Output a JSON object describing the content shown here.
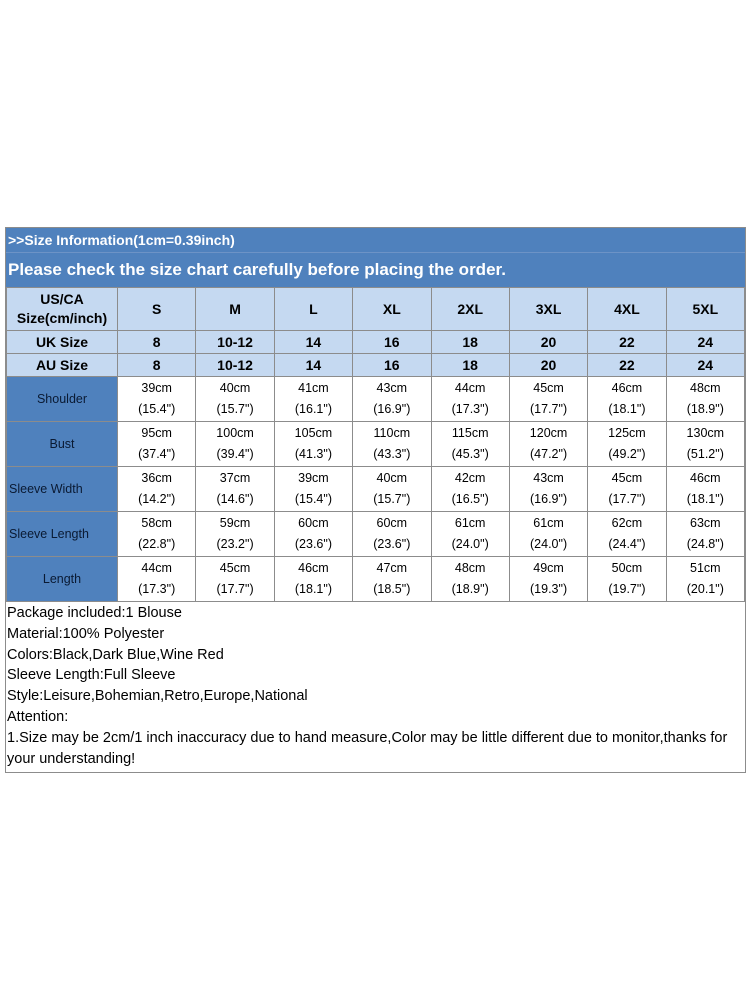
{
  "header": {
    "info": ">>Size Information(1cm=0.39inch)",
    "notice": "Please check the size chart carefully before placing the order."
  },
  "table": {
    "corner_line1": "US/CA",
    "corner_line2": "Size(cm/inch)",
    "sizes": [
      "S",
      "M",
      "L",
      "XL",
      "2XL",
      "3XL",
      "4XL",
      "5XL"
    ],
    "uk_label": "UK Size",
    "uk": [
      "8",
      "10-12",
      "14",
      "16",
      "18",
      "20",
      "22",
      "24"
    ],
    "au_label": "AU Size",
    "au": [
      "8",
      "10-12",
      "14",
      "16",
      "18",
      "20",
      "22",
      "24"
    ],
    "rows": [
      {
        "label": "Shoulder",
        "cm": [
          "39cm",
          "40cm",
          "41cm",
          "43cm",
          "44cm",
          "45cm",
          "46cm",
          "48cm"
        ],
        "inch": [
          "(15.4\")",
          "(15.7\")",
          "(16.1\")",
          "(16.9\")",
          "(17.3\")",
          "(17.7\")",
          "(18.1\")",
          "(18.9\")"
        ]
      },
      {
        "label": "Bust",
        "cm": [
          "95cm",
          "100cm",
          "105cm",
          "110cm",
          "115cm",
          "120cm",
          "125cm",
          "130cm"
        ],
        "inch": [
          "(37.4\")",
          "(39.4\")",
          "(41.3\")",
          "(43.3\")",
          "(45.3\")",
          "(47.2\")",
          "(49.2\")",
          "(51.2\")"
        ]
      },
      {
        "label": "Sleeve Width",
        "cm": [
          "36cm",
          "37cm",
          "39cm",
          "40cm",
          "42cm",
          "43cm",
          "45cm",
          "46cm"
        ],
        "inch": [
          "(14.2\")",
          "(14.6\")",
          "(15.4\")",
          "(15.7\")",
          "(16.5\")",
          "(16.9\")",
          "(17.7\")",
          "(18.1\")"
        ]
      },
      {
        "label": "Sleeve Length",
        "cm": [
          "58cm",
          "59cm",
          "60cm",
          "60cm",
          "61cm",
          "61cm",
          "62cm",
          "63cm"
        ],
        "inch": [
          "(22.8\")",
          "(23.2\")",
          "(23.6\")",
          "(23.6\")",
          "(24.0\")",
          "(24.0\")",
          "(24.4\")",
          "(24.8\")"
        ]
      },
      {
        "label": "Length",
        "cm": [
          "44cm",
          "45cm",
          "46cm",
          "47cm",
          "48cm",
          "49cm",
          "50cm",
          "51cm"
        ],
        "inch": [
          "(17.3\")",
          "(17.7\")",
          "(18.1\")",
          "(18.5\")",
          "(18.9\")",
          "(19.3\")",
          "(19.7\")",
          "(20.1\")"
        ]
      }
    ]
  },
  "notes": {
    "package": "Package included:1  Blouse",
    "material": "Material:100% Polyester",
    "colors": "Colors:Black,Dark Blue,Wine Red",
    "sleeve": "Sleeve Length:Full Sleeve",
    "style": "Style:Leisure,Bohemian,Retro,Europe,National",
    "attention": "Attention:",
    "note1": "1.Size may be 2cm/1 inch inaccuracy due to hand measure,Color may be little different due to monitor,thanks for your understanding!"
  }
}
